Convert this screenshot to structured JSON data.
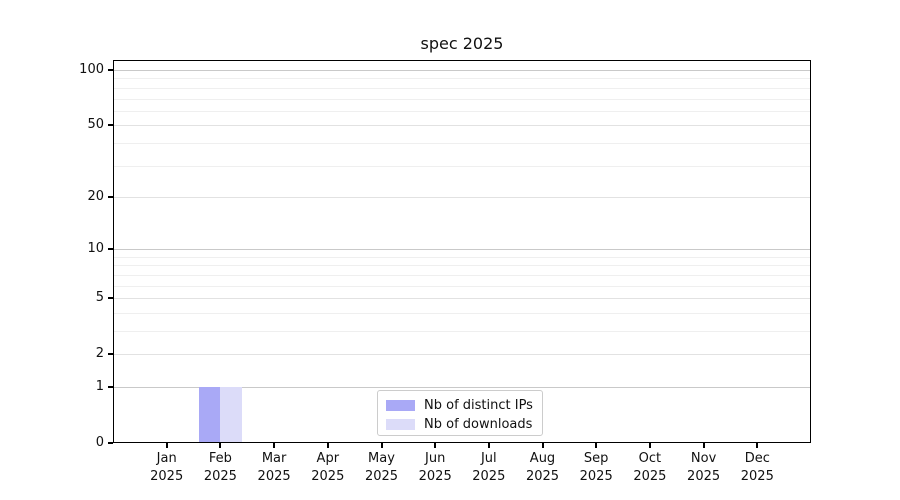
{
  "chart_data": {
    "type": "bar",
    "title": "spec 2025",
    "categories": [
      "Jan",
      "Feb",
      "Mar",
      "Apr",
      "May",
      "Jun",
      "Jul",
      "Aug",
      "Sep",
      "Oct",
      "Nov",
      "Dec"
    ],
    "year_label": "2025",
    "series": [
      {
        "name": "Nb of distinct IPs",
        "color": "#a9a9f6",
        "values": [
          0,
          1,
          0,
          0,
          0,
          0,
          0,
          0,
          0,
          0,
          0,
          0
        ]
      },
      {
        "name": "Nb of downloads",
        "color": "#dcdcf9",
        "values": [
          0,
          1,
          0,
          0,
          0,
          0,
          0,
          0,
          0,
          0,
          0,
          0
        ]
      }
    ],
    "xlabel": "",
    "ylabel": "",
    "ylim": [
      0,
      100
    ],
    "y_axis": {
      "scale": "log1p",
      "ticks": [
        0,
        1,
        2,
        5,
        10,
        20,
        50,
        100
      ],
      "minor_gridlines": [
        3,
        4,
        6,
        7,
        8,
        9,
        30,
        40,
        60,
        70,
        80,
        90
      ],
      "emphasized_gridlines": [
        1,
        10,
        100
      ]
    },
    "grid": true,
    "legend_position": "lower center",
    "colors": {
      "spine": "#000000",
      "grid_emphasis": "#c9c9c9",
      "grid_labeled": "#e2e2e2",
      "grid_minor": "#efefef",
      "text": "#111111",
      "background": "#ffffff"
    }
  }
}
